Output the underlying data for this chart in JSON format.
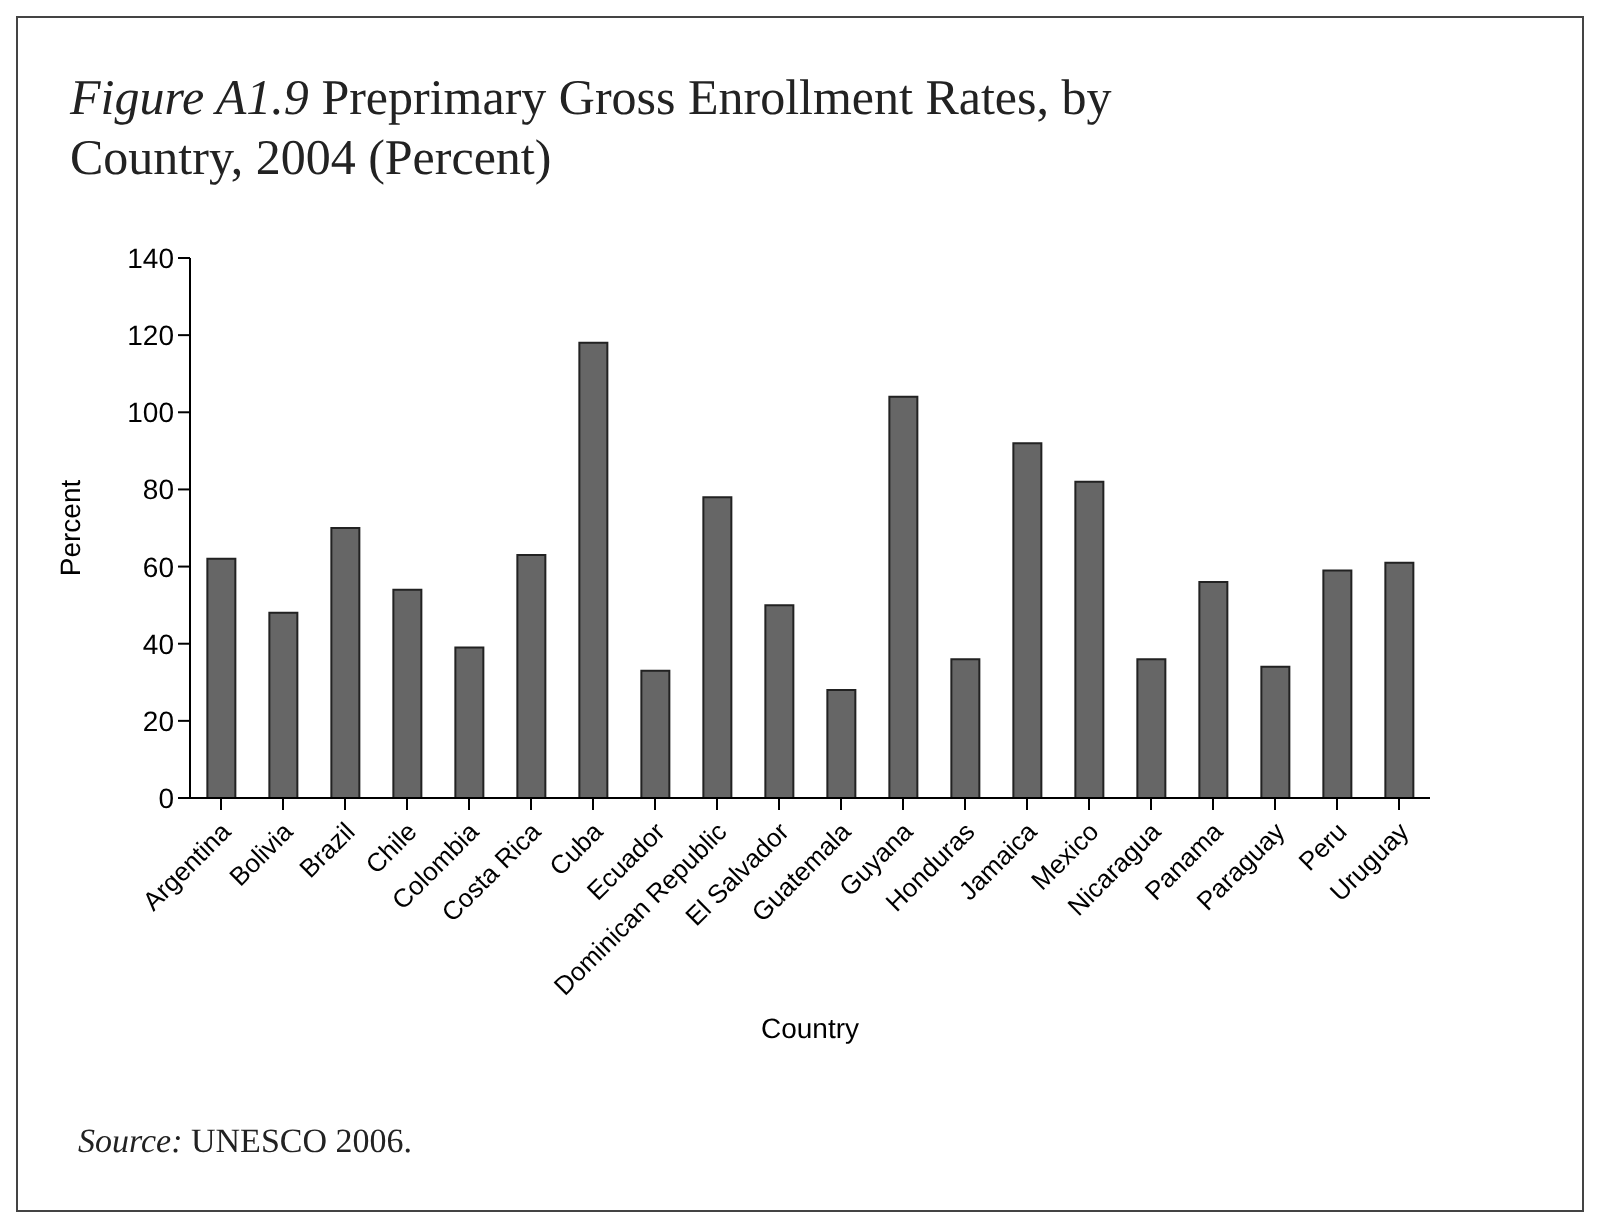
{
  "chart_data": {
    "type": "bar",
    "title": "Figure A1.9 Preprimary Gross Enrollment Rates, by Country, 2004 (Percent)",
    "xlabel": "Country",
    "ylabel": "Percent",
    "categories": [
      "Argentina",
      "Bolivia",
      "Brazil",
      "Chile",
      "Colombia",
      "Costa Rica",
      "Cuba",
      "Ecuador",
      "Dominican Republic",
      "El Salvador",
      "Guatemala",
      "Guyana",
      "Honduras",
      "Jamaica",
      "Mexico",
      "Nicaragua",
      "Panama",
      "Paraguay",
      "Peru",
      "Uruguay"
    ],
    "values": [
      62,
      48,
      70,
      54,
      39,
      63,
      118,
      33,
      78,
      50,
      28,
      104,
      36,
      92,
      82,
      36,
      56,
      34,
      59,
      61
    ],
    "color": "#666666",
    "ylim": [
      0,
      140
    ],
    "yticks": [
      0,
      20,
      40,
      60,
      80,
      100,
      120,
      140
    ],
    "grid": false,
    "annotations": [
      "Source: UNESCO 2006."
    ]
  }
}
